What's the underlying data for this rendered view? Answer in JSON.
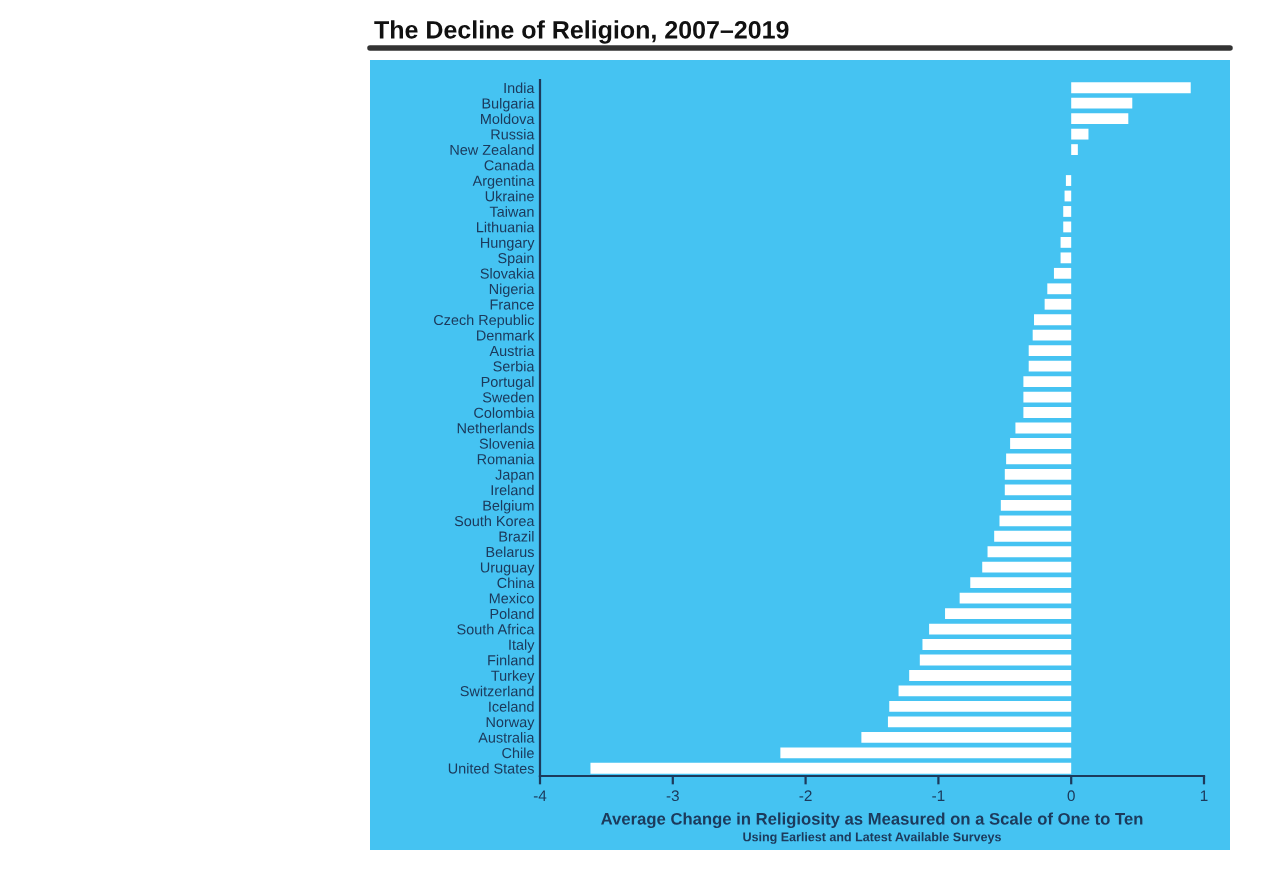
{
  "chart_data": {
    "type": "bar",
    "orientation": "horizontal",
    "title": "The Decline of Religion, 2007–2019",
    "xlabel": "Average Change in Religiosity as Measured on a Scale of One to Ten",
    "annotations": [
      "Using Earliest and Latest Available Surveys"
    ],
    "categories": [
      "India",
      "Bulgaria",
      "Moldova",
      "Russia",
      "New Zealand",
      "Canada",
      "Argentina",
      "Ukraine",
      "Taiwan",
      "Lithuania",
      "Hungary",
      "Spain",
      "Slovakia",
      "Nigeria",
      "France",
      "Czech Republic",
      "Denmark",
      "Austria",
      "Serbia",
      "Portugal",
      "Sweden",
      "Colombia",
      "Netherlands",
      "Slovenia",
      "Romania",
      "Japan",
      "Ireland",
      "Belgium",
      "South Korea",
      "Brazil",
      "Belarus",
      "Uruguay",
      "China",
      "Mexico",
      "Poland",
      "South Africa",
      "Italy",
      "Finland",
      "Turkey",
      "Switzerland",
      "Iceland",
      "Norway",
      "Australia",
      "Chile",
      "United States"
    ],
    "values": [
      0.9,
      0.46,
      0.43,
      0.13,
      0.05,
      0.0,
      -0.04,
      -0.05,
      -0.06,
      -0.06,
      -0.08,
      -0.08,
      -0.13,
      -0.18,
      -0.2,
      -0.28,
      -0.29,
      -0.32,
      -0.32,
      -0.36,
      -0.36,
      -0.36,
      -0.42,
      -0.46,
      -0.49,
      -0.5,
      -0.5,
      -0.53,
      -0.54,
      -0.58,
      -0.63,
      -0.67,
      -0.76,
      -0.84,
      -0.95,
      -1.07,
      -1.12,
      -1.14,
      -1.22,
      -1.3,
      -1.37,
      -1.38,
      -1.58,
      -2.19,
      -3.62
    ],
    "color": "#ffffff",
    "xlim": [
      -4,
      1
    ],
    "xticks": [
      -4,
      -3,
      -2,
      -1,
      0,
      1
    ]
  }
}
